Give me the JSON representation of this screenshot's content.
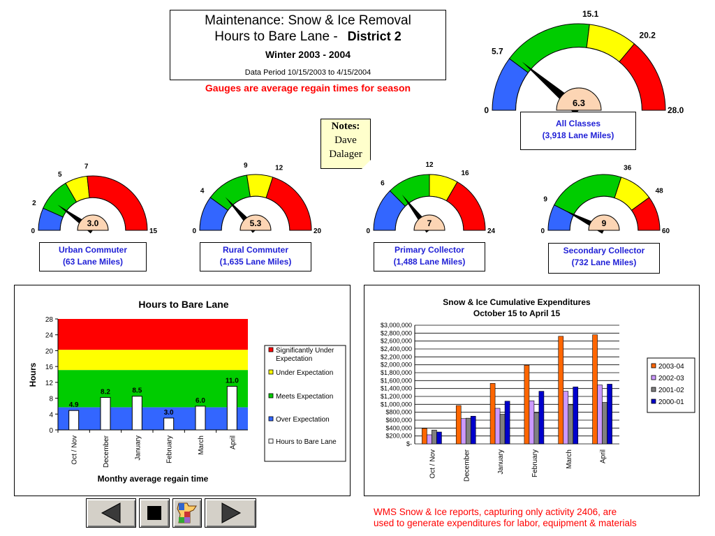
{
  "header": {
    "line1": "Maintenance: Snow & Ice Removal",
    "line2": "Hours to Bare Lane -",
    "district": "District 2",
    "winter": "Winter 2003 - 2004",
    "period": "Data Period 10/15/2003 to 4/15/2004",
    "subtitle": "Gauges are average regain times for season"
  },
  "notes": {
    "title": "Notes:",
    "name1": "Dave",
    "name2": "Dalager"
  },
  "colors": {
    "blue": "#3366ff",
    "green": "#00cc00",
    "yellow": "#ffff00",
    "red": "#ff0000",
    "hub": "#fcd5b4",
    "label_blue": "#1f1fd6",
    "orange": "#ff6600",
    "lavender": "#cc99ff",
    "gray": "#808080",
    "navy": "#0000cc"
  },
  "gauges": [
    {
      "id": "all-classes",
      "title": "All Classes",
      "subtitle": "(3,918 Lane Miles)",
      "min": 0,
      "max": 28,
      "t1": 5.7,
      "t2": 15.1,
      "t3": 20.2,
      "value": 6.3,
      "labels": {
        "min": "0",
        "t1": "5.7",
        "t2": "15.1",
        "t3": "20.2",
        "max": "28.0",
        "value": "6.3"
      }
    },
    {
      "id": "urban-commuter",
      "title": "Urban Commuter",
      "subtitle": "(63 Lane Miles)",
      "min": 0,
      "max": 15,
      "t1": 2,
      "t2": 5,
      "t3": 7,
      "value": 3.0,
      "labels": {
        "min": "0",
        "t1": "2",
        "t2": "5",
        "t3": "7",
        "max": "15",
        "value": "3.0"
      }
    },
    {
      "id": "rural-commuter",
      "title": "Rural Commuter",
      "subtitle": "(1,635 Lane Miles)",
      "min": 0,
      "max": 20,
      "t1": 4,
      "t2": 9,
      "t3": 12,
      "value": 5.3,
      "labels": {
        "min": "0",
        "t1": "4",
        "t2": "9",
        "t3": "12",
        "max": "20",
        "value": "5.3"
      }
    },
    {
      "id": "primary-collector",
      "title": "Primary Collector",
      "subtitle": "(1,488 Lane Miles)",
      "min": 0,
      "max": 24,
      "t1": 6,
      "t2": 12,
      "t3": 16,
      "value": 7,
      "labels": {
        "min": "0",
        "t1": "6",
        "t2": "12",
        "t3": "16",
        "max": "24",
        "value": "7"
      }
    },
    {
      "id": "secondary-collector",
      "title": "Secondary Collector",
      "subtitle": "(732 Lane Miles)",
      "min": 0,
      "max": 60,
      "t1": 9,
      "t2": 36,
      "t3": 48,
      "value": 9,
      "labels": {
        "min": "0",
        "t1": "9",
        "t2": "36",
        "t3": "48",
        "max": "60",
        "value": "9"
      }
    }
  ],
  "chart_data": [
    {
      "type": "bar",
      "title": "Hours to Bare Lane",
      "xlabel": "Monthy average regain time",
      "ylabel": "Hours",
      "ylim": [
        0,
        28
      ],
      "yticks": [
        0,
        4,
        8,
        12,
        16,
        20,
        24,
        28
      ],
      "categories": [
        "Oct / Nov",
        "December",
        "January",
        "February",
        "March",
        "April"
      ],
      "series": [
        {
          "name": "Hours to Bare Lane",
          "values": [
            4.9,
            8.2,
            8.5,
            3.0,
            6.0,
            11.0
          ]
        }
      ],
      "data_labels": [
        "4.9",
        "8.2",
        "8.5",
        "3.0",
        "6.0",
        "11.0"
      ],
      "bands": [
        {
          "name": "Significantly Under Expectation",
          "from": 20.2,
          "to": 28,
          "color": "#ff0000"
        },
        {
          "name": "Under Expectation",
          "from": 15.1,
          "to": 20.2,
          "color": "#ffff00"
        },
        {
          "name": "Meets Expectation",
          "from": 5.7,
          "to": 15.1,
          "color": "#00cc00"
        },
        {
          "name": "Over Expectation",
          "from": 0,
          "to": 5.7,
          "color": "#3366ff"
        }
      ],
      "legend": [
        {
          "label": "Significantly Under Expectation",
          "color": "#ff0000"
        },
        {
          "label": "Under Expectation",
          "color": "#ffff00"
        },
        {
          "label": "Meets Expectation",
          "color": "#00cc00"
        },
        {
          "label": "Over Expectation",
          "color": "#3366ff"
        },
        {
          "label": "Hours to Bare Lane",
          "color": "#ffffff"
        }
      ],
      "legend_position": "right"
    },
    {
      "type": "bar",
      "title": "Snow & Ice Cumulative Expenditures",
      "subtitle": "October 15 to April 15",
      "ylim": [
        0,
        3000000
      ],
      "ytick_labels": [
        "$-",
        "$200,000",
        "$400,000",
        "$600,000",
        "$800,000",
        "$1,000,000",
        "$1,200,000",
        "$1,400,000",
        "$1,600,000",
        "$1,800,000",
        "$2,000,000",
        "$2,200,000",
        "$2,400,000",
        "$2,600,000",
        "$2,800,000",
        "$3,000,000"
      ],
      "categories": [
        "Oct / Nov",
        "December",
        "January",
        "February",
        "March",
        "April"
      ],
      "series": [
        {
          "name": "2003-04",
          "color": "#ff6600",
          "values": [
            390000,
            970000,
            1530000,
            1990000,
            2720000,
            2760000
          ]
        },
        {
          "name": "2002-03",
          "color": "#cc99ff",
          "values": [
            230000,
            640000,
            900000,
            1090000,
            1330000,
            1490000
          ]
        },
        {
          "name": "2001-02",
          "color": "#808080",
          "values": [
            350000,
            650000,
            750000,
            790000,
            990000,
            1050000
          ]
        },
        {
          "name": "2000-01",
          "color": "#0000cc",
          "values": [
            300000,
            700000,
            1080000,
            1330000,
            1440000,
            1510000
          ]
        }
      ],
      "legend_position": "right"
    }
  ],
  "footnote": {
    "line1": "WMS Snow & Ice reports, capturing only activity 2406, are",
    "line2": "used to generate expenditures for labor, equipment & materials"
  },
  "nav": {
    "prev_icon": "left-triangle-icon",
    "stop_icon": "stop-square-icon",
    "map_icon": "minnesota-map-icon",
    "next_icon": "right-triangle-icon"
  }
}
